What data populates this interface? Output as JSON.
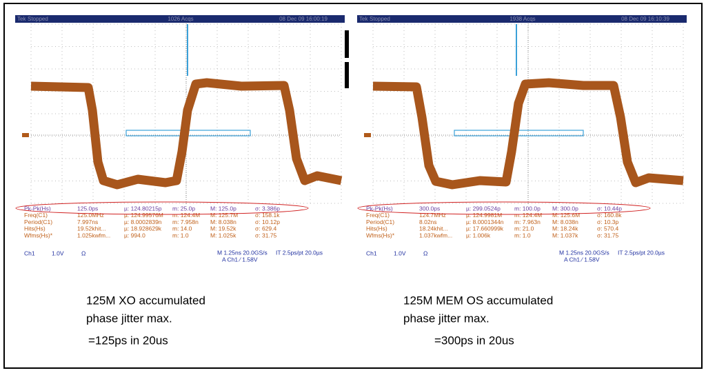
{
  "scopes": [
    {
      "header": {
        "brand": "Tek",
        "state": "Stopped",
        "acqs": "1026 Acqs",
        "datetime": "08 Dec 09 16:00:19"
      },
      "measurements": [
        [
          "Pk-Pk(Hs)",
          "125.0ps",
          "µ: 124.80215p",
          "m: 25.0p",
          "M: 125.0p",
          "σ: 3.386p"
        ],
        [
          "Freq(C1)",
          "125.0MHz",
          "µ: 124.99576M",
          "m: 124.4M",
          "M: 125.7M",
          "σ: 158.1k"
        ],
        [
          "Period(C1)",
          "7.997ns",
          "µ: 8.0002839n",
          "m: 7.958n",
          "M: 8.038n",
          "σ: 10.12p"
        ],
        [
          "Hits(Hs)",
          "19.52khit...",
          "µ: 18.928629k",
          "m: 14.0",
          "M: 19.52k",
          "σ: 629.4"
        ],
        [
          "Wfms(Hs)*",
          "1.025kwfm...",
          "µ: 994.0",
          "m: 1.0",
          "M: 1.025k",
          "σ: 31.75"
        ]
      ],
      "status": {
        "channel": "Ch1",
        "volts": "1.0V",
        "ohm": "Ω",
        "timebase": "M 1.25ns 20.0GS/s",
        "resolution": "IT 2.5ps/pt 20.0µs",
        "trigger": "A Ch1 ⁄ 1.58V"
      },
      "caption": [
        "125M XO accumulated",
        "phase jitter max.",
        "=125ps in 20us"
      ]
    },
    {
      "header": {
        "brand": "Tek",
        "state": "Stopped",
        "acqs": "1938 Acqs",
        "datetime": "08 Dec 09 16:10:39"
      },
      "measurements": [
        [
          "Pk-Pk(Hs)",
          "300.0ps",
          "µ: 299.0524p",
          "m: 100.0p",
          "M: 300.0p",
          "σ: 10.44p"
        ],
        [
          "Freq(C1)",
          "124.7MHz",
          "µ: 124.9981M",
          "m: 124.4M",
          "M: 125.6M",
          "σ: 160.8k"
        ],
        [
          "Period(C1)",
          "8.02ns",
          "µ: 8.0001344n",
          "m: 7.963n",
          "M: 8.038n",
          "σ: 10.3p"
        ],
        [
          "Hits(Hs)",
          "18.24khit...",
          "µ: 17.660999k",
          "m: 21.0",
          "M: 18.24k",
          "σ: 570.4"
        ],
        [
          "Wfms(Hs)*",
          "1.037kwfm...",
          "µ: 1.006k",
          "m: 1.0",
          "M: 1.037k",
          "σ: 31.75"
        ]
      ],
      "status": {
        "channel": "Ch1",
        "volts": "1.0V",
        "ohm": "Ω",
        "timebase": "M 1.25ns 20.0GS/s",
        "resolution": "IT 2.5ps/pt 20.0µs",
        "trigger": "A Ch1 ⁄ 1.58V"
      },
      "caption": [
        "125M MEM OS accumulated",
        "phase jitter max.",
        "=300ps in 20us"
      ]
    }
  ]
}
